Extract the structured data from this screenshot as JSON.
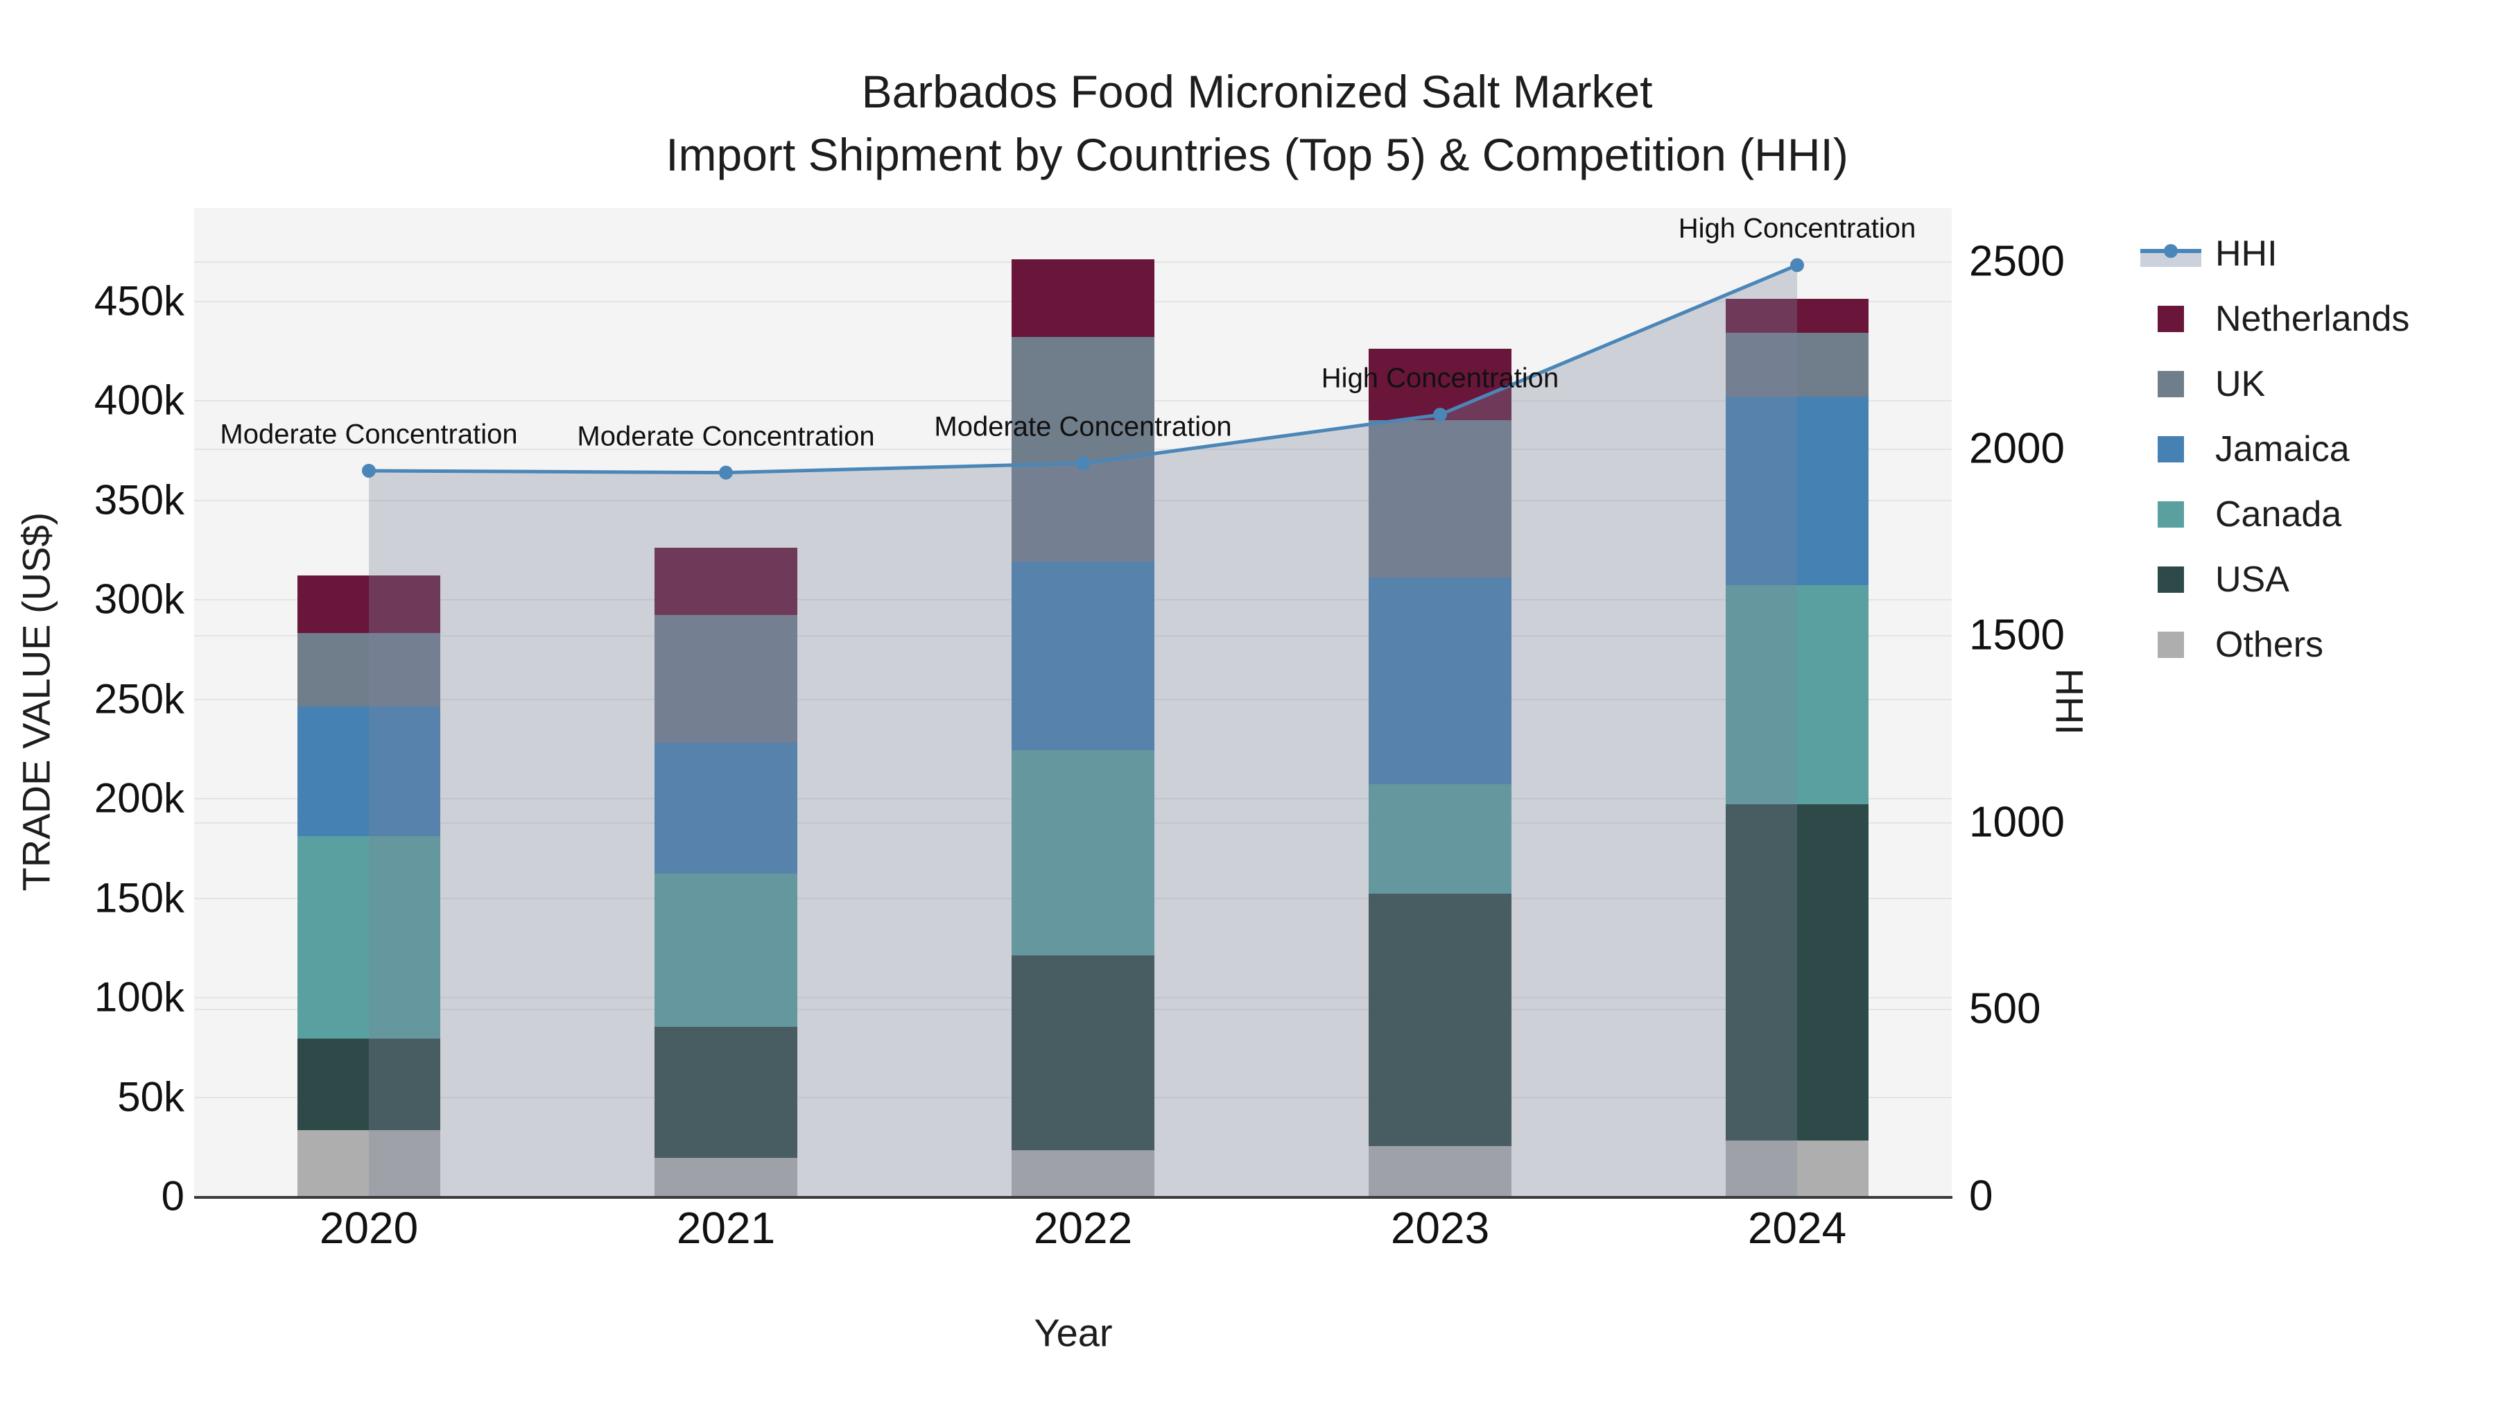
{
  "title": {
    "line1": "Barbados Food Micronized Salt Market",
    "line2": "Import Shipment by Countries (Top 5) & Competition (HHI)"
  },
  "axes": {
    "y_left": {
      "title": "TRADE VALUE (US$)",
      "tick_labels": [
        "0",
        "50k",
        "100k",
        "150k",
        "200k",
        "250k",
        "300k",
        "350k",
        "400k",
        "450k"
      ],
      "tick_values": [
        0,
        50000,
        100000,
        150000,
        200000,
        250000,
        300000,
        350000,
        400000,
        450000
      ],
      "range": [
        0,
        450000
      ]
    },
    "y_right": {
      "title": "HHI",
      "tick_labels": [
        "0",
        "500",
        "1000",
        "1500",
        "2000",
        "2500"
      ],
      "tick_values": [
        0,
        500,
        1000,
        1500,
        2000,
        2500
      ],
      "range": [
        0,
        2500
      ]
    },
    "x": {
      "title": "Year",
      "categories": [
        "2020",
        "2021",
        "2022",
        "2023",
        "2024"
      ]
    }
  },
  "legend": {
    "items": [
      {
        "label": "HHI",
        "type": "line",
        "color": "#4a86b8"
      },
      {
        "label": "Netherlands",
        "type": "swatch",
        "color": "#69163a"
      },
      {
        "label": "UK",
        "type": "swatch",
        "color": "#707e8c"
      },
      {
        "label": "Jamaica",
        "type": "swatch",
        "color": "#4681b4"
      },
      {
        "label": "Canada",
        "type": "swatch",
        "color": "#5ba0a0"
      },
      {
        "label": "USA",
        "type": "swatch",
        "color": "#2e4a48"
      },
      {
        "label": "Others",
        "type": "swatch",
        "color": "#aeaeae"
      }
    ]
  },
  "annotations": [
    {
      "category": "2020",
      "text": "Moderate Concentration"
    },
    {
      "category": "2021",
      "text": "Moderate Concentration"
    },
    {
      "category": "2022",
      "text": "Moderate Concentration"
    },
    {
      "category": "2023",
      "text": "High Concentration"
    },
    {
      "category": "2024",
      "text": "High Concentration"
    }
  ],
  "chart_data": {
    "type": "combo: stacked-bar (left axis) + line-with-area (right axis)",
    "title": "Barbados Food Micronized Salt Market — Import Shipment by Countries (Top 5) & Competition (HHI)",
    "categories": [
      "2020",
      "2021",
      "2022",
      "2023",
      "2024"
    ],
    "xlabel": "Year",
    "ylabel_left": "TRADE VALUE (US$)",
    "ylabel_right": "HHI",
    "ylim_left": [
      0,
      450000
    ],
    "ylim_right": [
      0,
      2500
    ],
    "grid": true,
    "legend_position": "right",
    "stack_order_bottom_to_top": [
      "Others",
      "USA",
      "Canada",
      "Jamaica",
      "UK",
      "Netherlands"
    ],
    "series": [
      {
        "name": "Netherlands",
        "color": "#69163a",
        "values": [
          29000,
          34000,
          39000,
          36000,
          17000
        ]
      },
      {
        "name": "UK",
        "color": "#707e8c",
        "values": [
          37000,
          64000,
          113000,
          79000,
          32000
        ]
      },
      {
        "name": "Jamaica",
        "color": "#4681b4",
        "values": [
          65000,
          66000,
          95000,
          104000,
          95000
        ]
      },
      {
        "name": "Canada",
        "color": "#5ba0a0",
        "values": [
          102000,
          77000,
          103000,
          55000,
          110000
        ]
      },
      {
        "name": "USA",
        "color": "#2e4a48",
        "values": [
          46000,
          66000,
          98000,
          127000,
          169000
        ]
      },
      {
        "name": "Others",
        "color": "#aeaeae",
        "values": [
          33000,
          19000,
          23000,
          25000,
          28000
        ]
      }
    ],
    "line_series": {
      "name": "HHI",
      "color": "#4a86b8",
      "area_fill": "rgba(125,135,155,0.32)",
      "values": [
        1940,
        1935,
        1960,
        2090,
        2490
      ]
    }
  }
}
